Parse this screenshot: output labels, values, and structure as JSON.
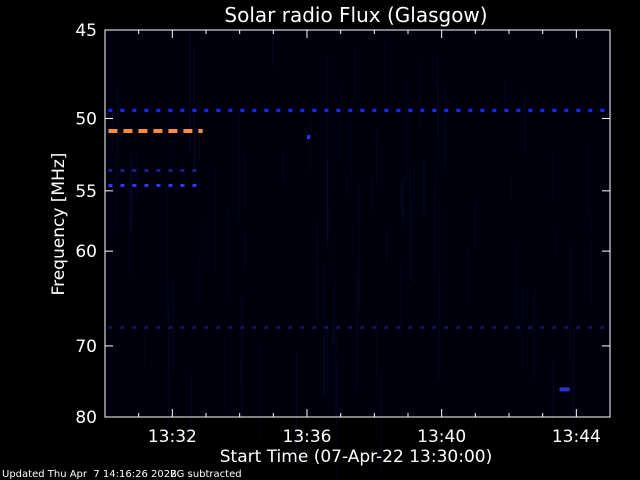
{
  "chart_data": {
    "type": "heatmap",
    "title": "Solar radio Flux (Glasgow)",
    "xlabel": "Start Time (07-Apr-22 13:30:00)",
    "ylabel": "Frequency [MHz]",
    "x_range_minutes": [
      0,
      15
    ],
    "x_tick_minutes": [
      2,
      6,
      10,
      14
    ],
    "x_tick_labels": [
      "13:32",
      "13:36",
      "13:40",
      "13:44"
    ],
    "y_range_mhz": [
      80,
      45
    ],
    "y_ticks": [
      45,
      50,
      55,
      60,
      70,
      80
    ],
    "y_tick_labels": [
      "45",
      "50",
      "55",
      "60",
      "70",
      "80"
    ],
    "y_scale": "reciprocal",
    "features": [
      {
        "kind": "dashed-line",
        "freq_mhz": 49.5,
        "start_min": 0.1,
        "end_min": 15,
        "color": "#1a2bff"
      },
      {
        "kind": "dashed-line",
        "freq_mhz": 50.8,
        "start_min": 0.1,
        "end_min": 2.9,
        "color": "#ff8c3a"
      },
      {
        "kind": "dashed-line",
        "freq_mhz": 53.5,
        "start_min": 0.1,
        "end_min": 2.9,
        "color": "#1b1f8a"
      },
      {
        "kind": "dashed-line",
        "freq_mhz": 54.6,
        "start_min": 0.1,
        "end_min": 2.9,
        "color": "#2a35ff"
      },
      {
        "kind": "dashed-line",
        "freq_mhz": 67.8,
        "start_min": 0.1,
        "end_min": 15,
        "color": "#10155a"
      },
      {
        "kind": "spot",
        "freq_mhz": 51.2,
        "start_min": 6.0,
        "end_min": 6.1,
        "color": "#2233ff"
      },
      {
        "kind": "spot",
        "freq_mhz": 75.8,
        "start_min": 13.5,
        "end_min": 13.8,
        "color": "#2a35d0"
      }
    ]
  },
  "footer": {
    "updated": "Updated Thu Apr  7 14:16:26 2022",
    "note": "BG subtracted"
  }
}
